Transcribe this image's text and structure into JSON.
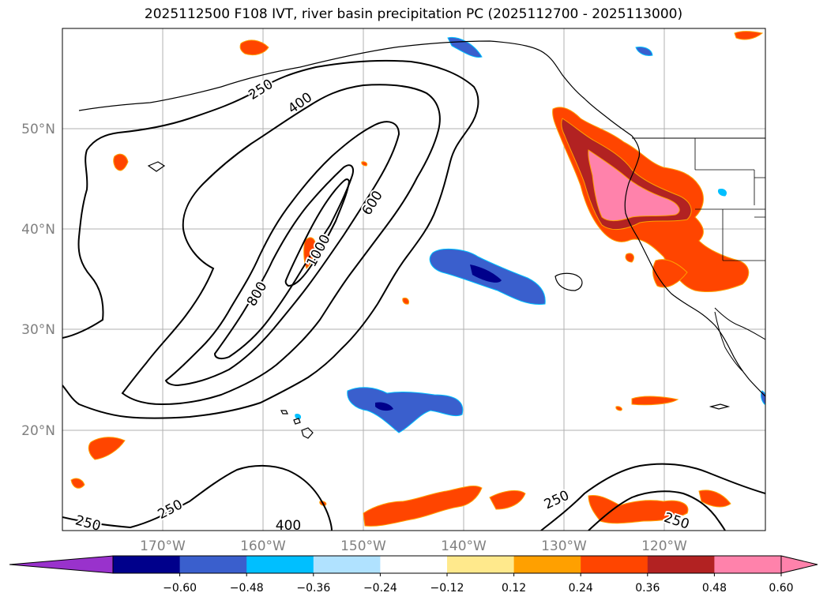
{
  "title": "2025112500 F108 IVT, river basin precipitation PC (2025112700 - 2025113000)",
  "map": {
    "lat_ticks": [
      "20°N",
      "30°N",
      "40°N",
      "50°N"
    ],
    "lon_ticks": [
      "170°W",
      "160°W",
      "150°W",
      "140°W",
      "130°W",
      "120°W"
    ],
    "ivt_contour_labels": [
      "250",
      "400",
      "600",
      "800",
      "1000",
      "250",
      "250",
      "400",
      "250",
      "250"
    ]
  },
  "colorbar": {
    "tick_labels": [
      "−0.60",
      "−0.48",
      "−0.36",
      "−0.24",
      "−0.12",
      "0.12",
      "0.24",
      "0.36",
      "0.48",
      "0.60"
    ],
    "colors": [
      "#9932cc",
      "#00008b",
      "#3a5fcd",
      "#00bfff",
      "#b0e2ff",
      "#ffffff",
      "#ffe98c",
      "#ffa000",
      "#ff4500",
      "#b22222",
      "#ff82ab",
      "#ff82ab"
    ]
  }
}
